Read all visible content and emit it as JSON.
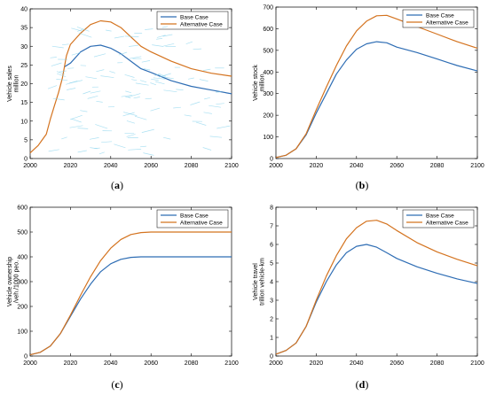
{
  "chart_data": [
    {
      "type": "line",
      "panel_label": "a",
      "title": "",
      "xlabel": "",
      "ylabel": "Vehicle sales\nmillion",
      "xlim": [
        2000,
        2100
      ],
      "ylim": [
        0,
        40
      ],
      "xticks": [
        2000,
        2020,
        2040,
        2060,
        2080,
        2100
      ],
      "yticks": [
        0,
        5,
        10,
        15,
        20,
        25,
        30,
        35,
        40
      ],
      "legend_position": "top-right",
      "grid": false,
      "series": [
        {
          "name": "Base Case",
          "color": "#2e6db4",
          "x": [
            2017,
            2020,
            2025,
            2030,
            2035,
            2040,
            2045,
            2050,
            2055,
            2060,
            2070,
            2080,
            2090,
            2100
          ],
          "y": [
            24.5,
            25.5,
            28.5,
            30.0,
            30.3,
            29.5,
            28.0,
            26.0,
            24.0,
            23.0,
            20.8,
            19.3,
            18.3,
            17.3
          ]
        },
        {
          "name": "Alternative Case",
          "color": "#d4731f",
          "x": [
            2000,
            2002,
            2004,
            2006,
            2008,
            2010,
            2012,
            2014,
            2016,
            2018,
            2020,
            2025,
            2030,
            2035,
            2040,
            2045,
            2050,
            2055,
            2060,
            2070,
            2080,
            2090,
            2100
          ],
          "y": [
            1.5,
            2.5,
            3.5,
            5.0,
            6.5,
            10.5,
            14.0,
            17.5,
            21.5,
            27.5,
            30.5,
            33.5,
            35.8,
            36.8,
            36.5,
            35.0,
            32.5,
            30.0,
            28.5,
            26.0,
            24.0,
            22.8,
            22.0
          ]
        }
      ]
    },
    {
      "type": "line",
      "panel_label": "b",
      "title": "",
      "xlabel": "",
      "ylabel": "Vehicle stock\nmillion",
      "xlim": [
        2000,
        2100
      ],
      "ylim": [
        0,
        700
      ],
      "xticks": [
        2000,
        2020,
        2040,
        2060,
        2080,
        2100
      ],
      "yticks": [
        0,
        100,
        200,
        300,
        400,
        500,
        600,
        700
      ],
      "legend_position": "top-right",
      "grid": false,
      "series": [
        {
          "name": "Base Case",
          "color": "#2e6db4",
          "x": [
            2000,
            2005,
            2010,
            2015,
            2020,
            2025,
            2030,
            2035,
            2040,
            2045,
            2050,
            2055,
            2060,
            2070,
            2080,
            2090,
            2100
          ],
          "y": [
            5,
            15,
            45,
            110,
            210,
            300,
            390,
            455,
            505,
            530,
            540,
            535,
            515,
            490,
            460,
            430,
            405
          ]
        },
        {
          "name": "Alternative Case",
          "color": "#d4731f",
          "x": [
            2000,
            2005,
            2010,
            2015,
            2020,
            2025,
            2030,
            2035,
            2040,
            2045,
            2050,
            2055,
            2060,
            2070,
            2080,
            2090,
            2100
          ],
          "y": [
            5,
            15,
            45,
            115,
            225,
            330,
            430,
            520,
            590,
            635,
            660,
            662,
            645,
            610,
            575,
            540,
            510
          ]
        }
      ]
    },
    {
      "type": "line",
      "panel_label": "c",
      "title": "",
      "xlabel": "",
      "ylabel": "Vehicle ownership\n/veh./1000 peo.",
      "xlim": [
        2000,
        2100
      ],
      "ylim": [
        0,
        600
      ],
      "xticks": [
        2000,
        2020,
        2040,
        2060,
        2080,
        2100
      ],
      "yticks": [
        0,
        100,
        200,
        300,
        400,
        500,
        600
      ],
      "legend_position": "top-right",
      "grid": false,
      "series": [
        {
          "name": "Base Case",
          "color": "#2e6db4",
          "x": [
            2000,
            2005,
            2010,
            2015,
            2020,
            2025,
            2030,
            2035,
            2040,
            2045,
            2050,
            2055,
            2060,
            2070,
            2080,
            2090,
            2100
          ],
          "y": [
            5,
            15,
            40,
            90,
            160,
            230,
            290,
            340,
            372,
            390,
            398,
            400,
            400,
            400,
            400,
            400,
            400
          ]
        },
        {
          "name": "Alternative Case",
          "color": "#d4731f",
          "x": [
            2000,
            2005,
            2010,
            2015,
            2020,
            2025,
            2030,
            2035,
            2040,
            2045,
            2050,
            2055,
            2060,
            2070,
            2080,
            2090,
            2100
          ],
          "y": [
            5,
            15,
            40,
            90,
            165,
            245,
            320,
            385,
            435,
            470,
            490,
            498,
            500,
            500,
            500,
            500,
            500
          ]
        }
      ]
    },
    {
      "type": "line",
      "panel_label": "d",
      "title": "",
      "xlabel": "",
      "ylabel": "Vehicle travel\ntrillion vehicle-km",
      "xlim": [
        2000,
        2100
      ],
      "ylim": [
        0,
        8
      ],
      "xticks": [
        2000,
        2020,
        2040,
        2060,
        2080,
        2100
      ],
      "yticks": [
        0,
        1,
        2,
        3,
        4,
        5,
        6,
        7,
        8
      ],
      "legend_position": "top-right",
      "grid": false,
      "series": [
        {
          "name": "Base Case",
          "color": "#2e6db4",
          "x": [
            2000,
            2005,
            2010,
            2015,
            2020,
            2025,
            2030,
            2035,
            2040,
            2045,
            2050,
            2055,
            2060,
            2070,
            2080,
            2090,
            2100
          ],
          "y": [
            0.1,
            0.3,
            0.7,
            1.6,
            2.9,
            4.0,
            4.9,
            5.55,
            5.9,
            6.0,
            5.85,
            5.55,
            5.25,
            4.8,
            4.45,
            4.15,
            3.9
          ]
        },
        {
          "name": "Alternative Case",
          "color": "#d4731f",
          "x": [
            2000,
            2005,
            2010,
            2015,
            2020,
            2025,
            2030,
            2035,
            2040,
            2045,
            2050,
            2055,
            2060,
            2070,
            2080,
            2090,
            2100
          ],
          "y": [
            0.1,
            0.3,
            0.7,
            1.6,
            3.0,
            4.3,
            5.4,
            6.3,
            6.9,
            7.25,
            7.3,
            7.1,
            6.75,
            6.1,
            5.6,
            5.2,
            4.85
          ]
        }
      ]
    }
  ]
}
